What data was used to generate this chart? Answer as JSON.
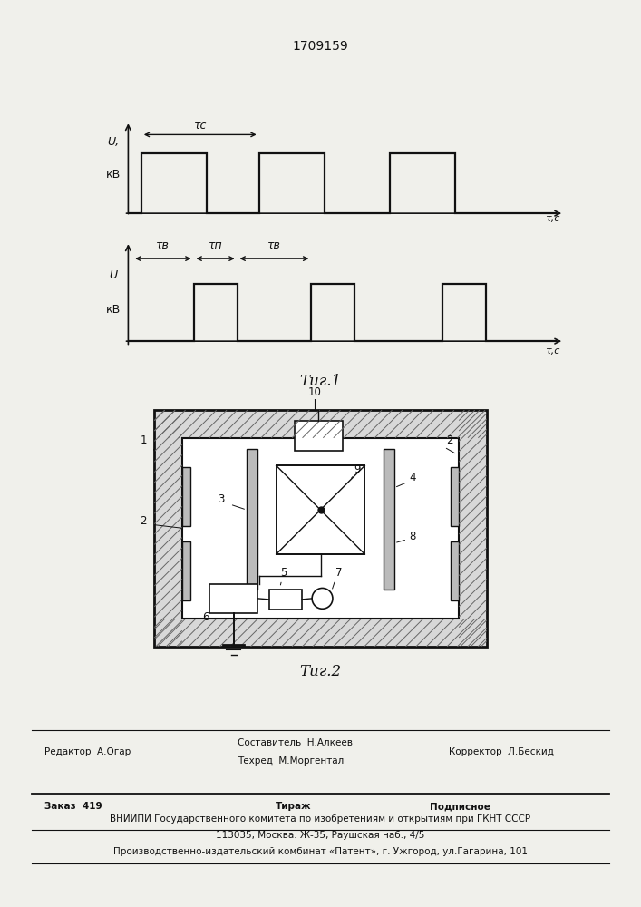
{
  "patent_number": "1709159",
  "fig1_label": "Τиг.1",
  "fig2_label": "Τиг.2",
  "bg_color": "#f0f0eb",
  "line_color": "#111111",
  "footer": {
    "editor": "Редактор  А.Огар",
    "composer_line1": "Составитель  Н.Алкеев",
    "composer_line2": "Техред  М.Моргентал",
    "corrector": "Корректор  Л.Бескид",
    "order": "Заказ  419",
    "tirazh": "Тираж",
    "podpisnoe": "Подписное",
    "vnipi": "ВНИИПИ Государственного комитета по изобретениям и открытиям при ГКНТ СССР",
    "address": "113035, Москва. Ж-35, Раушская наб., 4/5",
    "factory": "Производственно-издательский комбинат «Патент», г. Ужгород, ул.Гагарина, 101"
  }
}
